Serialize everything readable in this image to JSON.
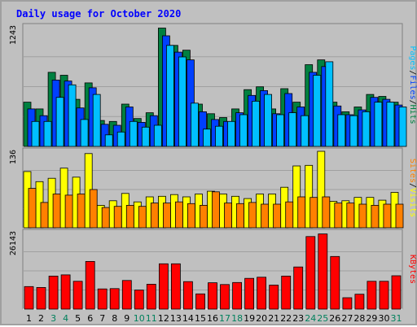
{
  "chart_data": {
    "type": "bar",
    "title": "Daily usage for October 2020",
    "categories": [
      "1",
      "2",
      "3",
      "4",
      "5",
      "6",
      "7",
      "8",
      "9",
      "10",
      "11",
      "12",
      "13",
      "14",
      "15",
      "16",
      "17",
      "18",
      "19",
      "20",
      "21",
      "22",
      "23",
      "24",
      "25",
      "26",
      "27",
      "28",
      "29",
      "30",
      "31"
    ],
    "weekend_days": [
      "3",
      "4",
      "10",
      "11",
      "17",
      "18",
      "24",
      "25",
      "31"
    ],
    "panels": [
      {
        "id": "hits-files-pages",
        "ymax": 1243,
        "ymax_label": "1243",
        "right_label": [
          "Pages",
          "/",
          "Files",
          "/",
          "Hits"
        ],
        "series": [
          {
            "name": "Hits",
            "color": "#008040",
            "values": [
              460,
              390,
              770,
              740,
              490,
              660,
              270,
              260,
              440,
              290,
              350,
              1230,
              1050,
              1000,
              440,
              340,
              300,
              390,
              590,
              620,
              390,
              600,
              460,
              850,
              900,
              460,
              360,
              410,
              540,
              520,
              460
            ]
          },
          {
            "name": "Files",
            "color": "#0040ff",
            "values": [
              390,
              320,
              690,
              680,
              400,
              610,
              230,
              220,
              410,
              250,
              320,
              1150,
              980,
              900,
              360,
              280,
              260,
              350,
              530,
              580,
              340,
              550,
              410,
              770,
              830,
              420,
              330,
              380,
              510,
              490,
              430
            ]
          },
          {
            "name": "Pages",
            "color": "#00c0ff",
            "values": [
              260,
              260,
              510,
              640,
              280,
              540,
              120,
              150,
              260,
              200,
              220,
              1050,
              930,
              450,
              180,
              210,
              260,
              330,
              470,
              540,
              330,
              350,
              320,
              740,
              880,
              330,
              320,
              360,
              460,
              460,
              410
            ]
          }
        ]
      },
      {
        "id": "visits-sites",
        "ymax": 136,
        "ymax_label": "136",
        "right_label": [
          "Sites",
          "/",
          "Visits"
        ],
        "series": [
          {
            "name": "Visits",
            "color": "#ffff00",
            "values": [
              100,
              82,
              88,
              106,
              90,
              132,
              40,
              48,
              61,
              46,
              55,
              56,
              59,
              55,
              60,
              65,
              60,
              56,
              52,
              60,
              60,
              72,
              110,
              111,
              136,
              47,
              48,
              54,
              54,
              49,
              63
            ]
          },
          {
            "name": "Sites",
            "color": "#ff8000",
            "values": [
              70,
              45,
              60,
              58,
              60,
              68,
              36,
              38,
              40,
              38,
              44,
              44,
              46,
              43,
              40,
              64,
              44,
              43,
              45,
              42,
              42,
              46,
              55,
              54,
              55,
              44,
              44,
              42,
              40,
              42,
              42
            ]
          }
        ]
      },
      {
        "id": "kbytes",
        "ymax": 26143,
        "ymax_label": "26143",
        "right_label": [
          "KBytes"
        ],
        "series": [
          {
            "name": "KBytes",
            "color": "#ff0000",
            "values": [
              7700,
              7400,
              11300,
              11700,
              9500,
              16300,
              6900,
              7000,
              9800,
              6500,
              8500,
              15500,
              15500,
              9400,
              5200,
              9000,
              8400,
              9100,
              10500,
              10900,
              8200,
              11300,
              14400,
              24800,
              25700,
              18000,
              3900,
              5100,
              9500,
              9500,
              11400
            ]
          }
        ]
      }
    ]
  },
  "colors": {
    "background": "#c0c0c0",
    "plot_background": "#c0c0c0",
    "gridline": "#a0a0a0",
    "title": "#0000ff",
    "weekday_label": "#000000",
    "weekend_label": "#00805c",
    "separator": "#000000"
  }
}
